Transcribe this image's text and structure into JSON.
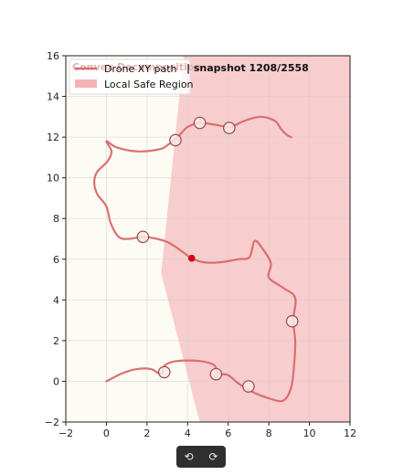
{
  "chart_data": {
    "type": "line",
    "title": "| snapshot 1208/2558",
    "title_faded": "Convex Decomposition",
    "xlabel": "",
    "ylabel": "",
    "xlim": [
      -2,
      12
    ],
    "ylim": [
      -2,
      16
    ],
    "x_ticks": [
      -2,
      0,
      2,
      4,
      6,
      8,
      10,
      12
    ],
    "y_ticks": [
      -2,
      0,
      2,
      4,
      6,
      8,
      10,
      12,
      14,
      16
    ],
    "x_tick_labels": [
      "−2",
      "0",
      "2",
      "4",
      "6",
      "8",
      "10",
      "12"
    ],
    "y_tick_labels": [
      "−2",
      "0",
      "2",
      "4",
      "6",
      "8",
      "10",
      "12",
      "14",
      "16"
    ],
    "grid": true,
    "legend": {
      "placement": "top-left",
      "entries": [
        {
          "label": "Drone XY path",
          "kind": "line",
          "color": "#d9686c"
        },
        {
          "label": "Local Safe Region",
          "kind": "patch",
          "color": "#f5b3b8"
        }
      ]
    },
    "safe_region": {
      "name": "Local Safe Region",
      "color": "#f5b3b8",
      "polygon": [
        [
          3.8,
          16
        ],
        [
          12,
          16
        ],
        [
          12,
          -2
        ],
        [
          4.6,
          -2
        ],
        [
          2.7,
          5.3
        ]
      ]
    },
    "series": [
      {
        "name": "Drone XY path",
        "color": "#d9686c",
        "points": [
          [
            9.1,
            12.0
          ],
          [
            8.9,
            12.1
          ],
          [
            8.6,
            12.4
          ],
          [
            8.3,
            12.8
          ],
          [
            7.6,
            13.0
          ],
          [
            6.8,
            12.8
          ],
          [
            6.1,
            12.5
          ],
          [
            5.4,
            12.6
          ],
          [
            4.6,
            12.7
          ],
          [
            4.0,
            12.5
          ],
          [
            3.7,
            12.2
          ],
          [
            3.4,
            11.9
          ],
          [
            3.0,
            11.6
          ],
          [
            2.6,
            11.4
          ],
          [
            1.5,
            11.3
          ],
          [
            0.5,
            11.5
          ],
          [
            0.0,
            11.8
          ],
          [
            0.25,
            11.3
          ],
          [
            0.05,
            10.8
          ],
          [
            -0.45,
            10.3
          ],
          [
            -0.6,
            9.8
          ],
          [
            -0.45,
            9.2
          ],
          [
            0.0,
            8.6
          ],
          [
            0.2,
            7.8
          ],
          [
            0.6,
            7.1
          ],
          [
            1.1,
            7.0
          ],
          [
            1.8,
            7.1
          ],
          [
            2.5,
            7.0
          ],
          [
            3.1,
            6.8
          ],
          [
            3.7,
            6.4
          ],
          [
            4.2,
            6.05
          ],
          [
            4.8,
            5.85
          ],
          [
            5.6,
            5.85
          ],
          [
            6.5,
            6.0
          ],
          [
            7.05,
            6.1
          ],
          [
            7.3,
            6.9
          ],
          [
            7.7,
            6.5
          ],
          [
            8.1,
            5.8
          ],
          [
            8.0,
            5.1
          ],
          [
            8.7,
            4.6
          ],
          [
            9.3,
            4.1
          ],
          [
            9.2,
            3.0
          ],
          [
            9.3,
            2.0
          ],
          [
            9.25,
            0.9
          ],
          [
            9.1,
            -0.3
          ],
          [
            8.7,
            -0.95
          ],
          [
            7.9,
            -0.8
          ],
          [
            7.05,
            -0.45
          ],
          [
            6.5,
            -0.1
          ],
          [
            6.0,
            0.3
          ],
          [
            5.5,
            0.4
          ],
          [
            5.3,
            0.8
          ],
          [
            4.6,
            1.0
          ],
          [
            3.5,
            1.0
          ],
          [
            2.9,
            0.8
          ],
          [
            2.7,
            0.35
          ],
          [
            2.2,
            0.6
          ],
          [
            1.5,
            0.6
          ],
          [
            0.8,
            0.4
          ],
          [
            0.0,
            0.0
          ]
        ]
      }
    ],
    "markers": [
      {
        "x": 3.4,
        "y": 11.85,
        "style": "circle-open"
      },
      {
        "x": 4.6,
        "y": 12.7,
        "style": "circle-open"
      },
      {
        "x": 6.05,
        "y": 12.45,
        "style": "circle-open"
      },
      {
        "x": 1.8,
        "y": 7.1,
        "style": "circle-open"
      },
      {
        "x": 9.15,
        "y": 2.95,
        "style": "circle-open"
      },
      {
        "x": 2.85,
        "y": 0.45,
        "style": "circle-open"
      },
      {
        "x": 5.4,
        "y": 0.35,
        "style": "circle-open"
      },
      {
        "x": 7.0,
        "y": -0.25,
        "style": "circle-open"
      }
    ],
    "current_position": {
      "x": 4.2,
      "y": 6.05,
      "color": "#d0021b"
    },
    "colors": {
      "path": "#d9686c",
      "safe_region": "#f5b3b8",
      "marker_edge": "#9b4a4c",
      "marker_fill": "#f6e9e4",
      "current": "#d0021b",
      "background": "#fcfbf4"
    }
  },
  "controls": {
    "undo_label": "⟲",
    "redo_label": "⟳"
  }
}
